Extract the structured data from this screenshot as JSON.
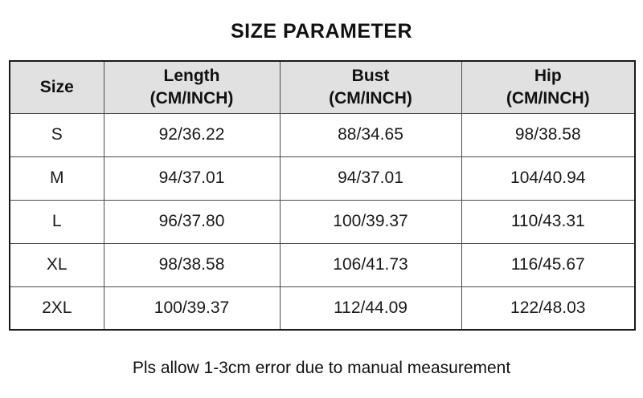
{
  "title": "SIZE PARAMETER",
  "footer_note": "Pls allow 1-3cm error due to manual measurement",
  "colors": {
    "header_background": "#e1e1e1",
    "inner_border": "#4a4a4a",
    "outer_border": "#1a1a1a",
    "text": "#111111",
    "page_background": "#ffffff"
  },
  "table": {
    "headers": [
      {
        "label": "Size",
        "unit": ""
      },
      {
        "label": "Length",
        "unit": "(CM/INCH)"
      },
      {
        "label": "Bust",
        "unit": "(CM/INCH)"
      },
      {
        "label": "Hip",
        "unit": "(CM/INCH)"
      }
    ]
  },
  "chart_data": {
    "type": "table",
    "title": "SIZE PARAMETER",
    "columns": [
      "Size",
      "Length (CM/INCH)",
      "Bust (CM/INCH)",
      "Hip (CM/INCH)"
    ],
    "rows": [
      [
        "S",
        "92/36.22",
        "88/34.65",
        "98/38.58"
      ],
      [
        "M",
        "94/37.01",
        "94/37.01",
        "104/40.94"
      ],
      [
        "L",
        "96/37.80",
        "100/39.37",
        "110/43.31"
      ],
      [
        "XL",
        "98/38.58",
        "106/41.73",
        "116/45.67"
      ],
      [
        "2XL",
        "100/39.37",
        "112/44.09",
        "122/48.03"
      ]
    ],
    "note": "Pls allow 1-3cm error due to manual measurement",
    "layout": {
      "header_fill": "#e1e1e1",
      "grid": true,
      "title_position": "top-center"
    }
  }
}
